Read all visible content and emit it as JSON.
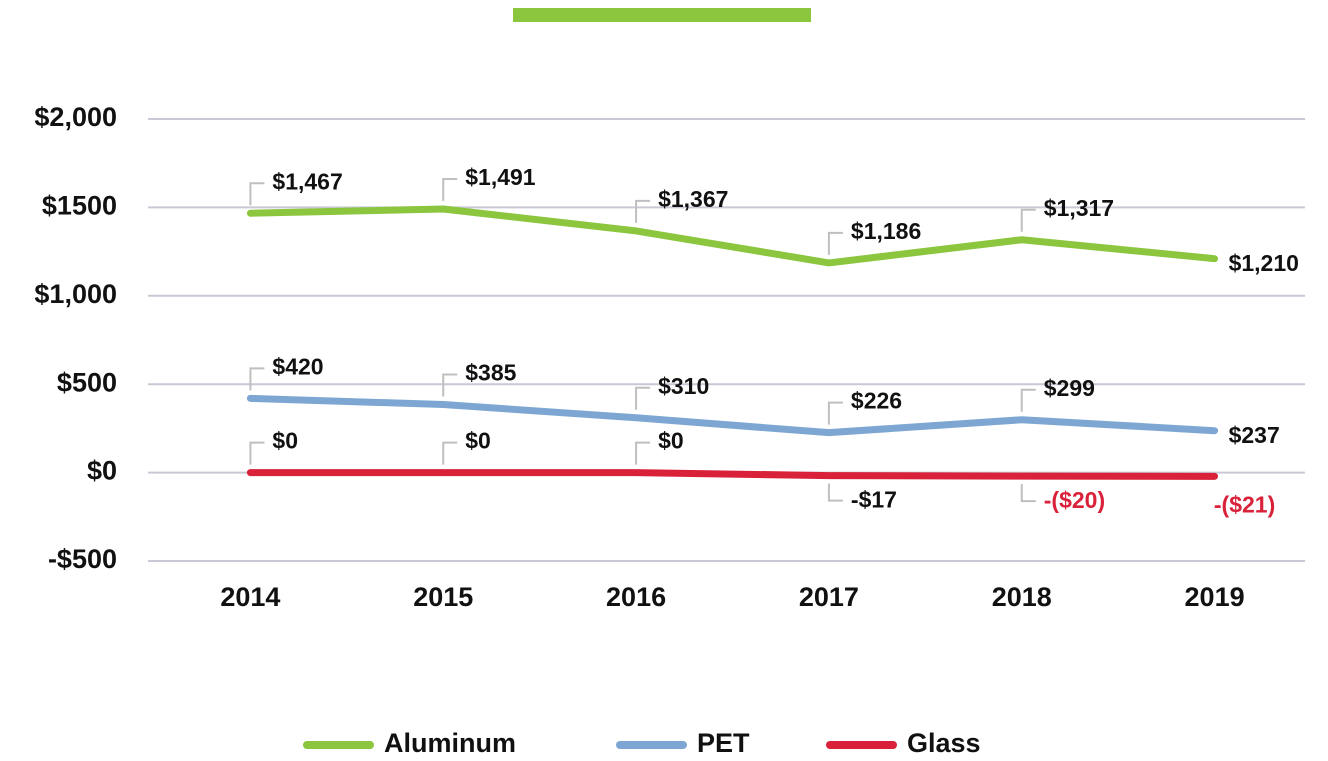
{
  "chart_data": {
    "type": "line",
    "categories": [
      "2014",
      "2015",
      "2016",
      "2017",
      "2018",
      "2019"
    ],
    "series": [
      {
        "name": "Aluminum",
        "color": "#8cc63f",
        "values": [
          1467,
          1491,
          1367,
          1186,
          1317,
          1210
        ],
        "value_labels": [
          "$1,467",
          "$1,491",
          "$1,367",
          "$1,186",
          "$1,317",
          "$1,210"
        ],
        "value_label_colors": [
          "#111111",
          "#111111",
          "#111111",
          "#111111",
          "#111111",
          "#111111"
        ]
      },
      {
        "name": "PET",
        "color": "#7ea6d3",
        "values": [
          420,
          385,
          310,
          226,
          299,
          237
        ],
        "value_labels": [
          "$420",
          "$385",
          "$310",
          "$226",
          "$299",
          "$237"
        ],
        "value_label_colors": [
          "#111111",
          "#111111",
          "#111111",
          "#111111",
          "#111111",
          "#111111"
        ]
      },
      {
        "name": "Glass",
        "color": "#d9213a",
        "values": [
          0,
          0,
          0,
          -17,
          -20,
          -21
        ],
        "value_labels": [
          "$0",
          "$0",
          "$0",
          "-$17",
          "-($20)",
          "-($21)"
        ],
        "value_label_colors": [
          "#111111",
          "#111111",
          "#111111",
          "#111111",
          "#d9213a",
          "#d9213a"
        ]
      }
    ],
    "ylim": [
      -500,
      2000
    ],
    "yticks": [
      {
        "value": -500,
        "label": "-$500"
      },
      {
        "value": 0,
        "label": "$0"
      },
      {
        "value": 500,
        "label": "$500"
      },
      {
        "value": 1000,
        "label": "$1,000"
      },
      {
        "value": 1500,
        "label": "$1500"
      },
      {
        "value": 2000,
        "label": "$2,000"
      }
    ],
    "grid": true
  }
}
